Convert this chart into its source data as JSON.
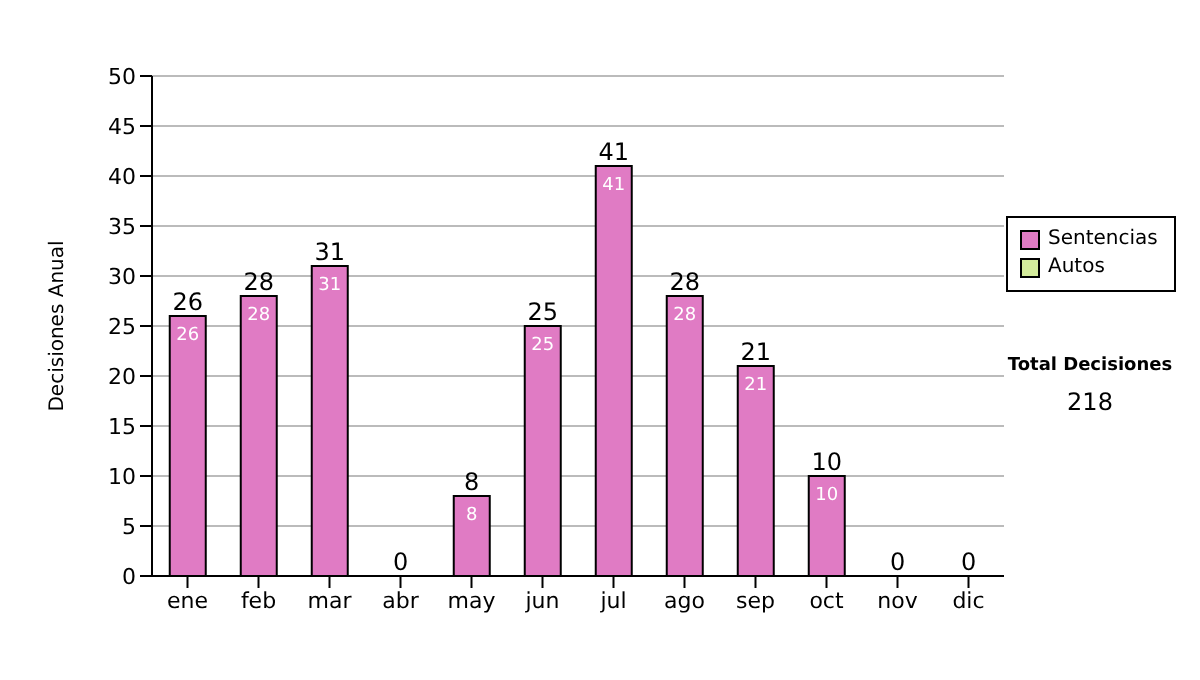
{
  "chart_data": {
    "type": "bar",
    "ylabel": "Decisiones Anual",
    "categories": [
      "ene",
      "feb",
      "mar",
      "abr",
      "may",
      "jun",
      "jul",
      "ago",
      "sep",
      "oct",
      "nov",
      "dic"
    ],
    "series": [
      {
        "name": "Sentencias",
        "color": "#e07bc4",
        "values": [
          26,
          28,
          31,
          0,
          8,
          25,
          41,
          28,
          21,
          10,
          0,
          0
        ],
        "value_labels": [
          "26",
          "28",
          "31",
          null,
          "8",
          "25",
          "41",
          "28",
          "21",
          "10",
          null,
          null
        ]
      },
      {
        "name": "Autos",
        "color": "#d4ec9c",
        "values": [
          0,
          0,
          0,
          0,
          0,
          0,
          0,
          0,
          0,
          0,
          0,
          0
        ]
      }
    ],
    "stacked": true,
    "totals": [
      "26",
      "28",
      "31",
      "0",
      "8",
      "25",
      "41",
      "28",
      "21",
      "10",
      "0",
      "0"
    ],
    "ylim": [
      0,
      50
    ],
    "yticks": [
      0,
      5,
      10,
      15,
      20,
      25,
      30,
      35,
      40,
      45,
      50
    ],
    "grid": "y",
    "legend": "right",
    "annotations": [
      "Total Decisiones",
      "218"
    ]
  }
}
